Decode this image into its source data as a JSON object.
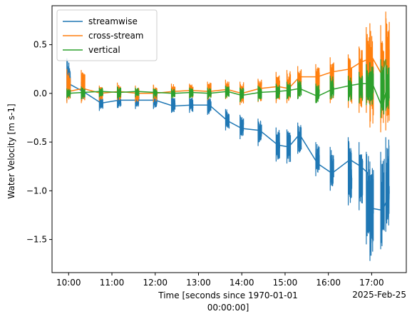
{
  "chart_data": {
    "type": "line",
    "title": "",
    "ylabel": "Water Velocity [m s-1]",
    "xlabel": "Time [seconds since 1970-01-01 00:00:00]",
    "xlabel_lines": [
      "Time [seconds since 1970-01-01",
      "00:00:00]"
    ],
    "x_offset_label": "2025-Feb-25",
    "xlim": [
      "09:37",
      "17:48"
    ],
    "ylim": [
      -1.84,
      0.9
    ],
    "x_ticks": [
      "10:00",
      "11:00",
      "12:00",
      "13:00",
      "14:00",
      "15:00",
      "16:00",
      "17:00"
    ],
    "y_ticks": [
      0.5,
      0.0,
      -0.5,
      -1.0,
      -1.5
    ],
    "y_tick_labels": [
      "0.5",
      "0.0",
      "−0.5",
      "−1.0",
      "−1.5"
    ],
    "grid": false,
    "legend_position": "upper-left",
    "colors": {
      "streamwise": "#1f77b4",
      "cross-stream": "#ff7f0e",
      "vertical": "#2ca02c"
    },
    "bursts": [
      {
        "time": "10:00",
        "streamwise": {
          "mean": 0.1,
          "min": -0.08,
          "max": 0.36
        },
        "cross-stream": {
          "mean": 0.02,
          "min": -0.1,
          "max": 0.25
        },
        "vertical": {
          "mean": 0.0,
          "min": -0.05,
          "max": 0.05
        }
      },
      {
        "time": "10:20",
        "streamwise": {
          "mean": 0.02,
          "min": -0.08,
          "max": 0.12
        },
        "cross-stream": {
          "mean": 0.05,
          "min": -0.1,
          "max": 0.24
        },
        "vertical": {
          "mean": 0.01,
          "min": -0.06,
          "max": 0.07
        }
      },
      {
        "time": "10:45",
        "streamwise": {
          "mean": -0.1,
          "min": -0.18,
          "max": 0.0
        },
        "cross-stream": {
          "mean": 0.0,
          "min": -0.08,
          "max": 0.08
        },
        "vertical": {
          "mean": 0.02,
          "min": -0.04,
          "max": 0.06
        }
      },
      {
        "time": "11:10",
        "streamwise": {
          "mean": -0.07,
          "min": -0.15,
          "max": 0.0
        },
        "cross-stream": {
          "mean": 0.02,
          "min": -0.07,
          "max": 0.11
        },
        "vertical": {
          "mean": 0.01,
          "min": -0.05,
          "max": 0.07
        }
      },
      {
        "time": "11:35",
        "streamwise": {
          "mean": -0.07,
          "min": -0.16,
          "max": 0.01
        },
        "cross-stream": {
          "mean": 0.0,
          "min": -0.09,
          "max": 0.08
        },
        "vertical": {
          "mean": 0.02,
          "min": -0.04,
          "max": 0.06
        }
      },
      {
        "time": "12:00",
        "streamwise": {
          "mean": -0.07,
          "min": -0.16,
          "max": 0.03
        },
        "cross-stream": {
          "mean": 0.0,
          "min": -0.09,
          "max": 0.09
        },
        "vertical": {
          "mean": 0.01,
          "min": -0.05,
          "max": 0.05
        }
      },
      {
        "time": "12:25",
        "streamwise": {
          "mean": -0.13,
          "min": -0.2,
          "max": -0.03
        },
        "cross-stream": {
          "mean": 0.02,
          "min": -0.05,
          "max": 0.1
        },
        "vertical": {
          "mean": 0.0,
          "min": -0.05,
          "max": 0.05
        }
      },
      {
        "time": "12:50",
        "streamwise": {
          "mean": -0.12,
          "min": -0.2,
          "max": -0.03
        },
        "cross-stream": {
          "mean": 0.03,
          "min": -0.05,
          "max": 0.1
        },
        "vertical": {
          "mean": 0.01,
          "min": -0.05,
          "max": 0.06
        }
      },
      {
        "time": "13:15",
        "streamwise": {
          "mean": -0.12,
          "min": -0.22,
          "max": -0.02
        },
        "cross-stream": {
          "mean": 0.02,
          "min": -0.07,
          "max": 0.12
        },
        "vertical": {
          "mean": 0.0,
          "min": -0.06,
          "max": 0.06
        }
      },
      {
        "time": "13:40",
        "streamwise": {
          "mean": -0.28,
          "min": -0.38,
          "max": -0.16
        },
        "cross-stream": {
          "mean": 0.04,
          "min": -0.06,
          "max": 0.14
        },
        "vertical": {
          "mean": 0.02,
          "min": -0.05,
          "max": 0.08
        }
      },
      {
        "time": "14:00",
        "streamwise": {
          "mean": -0.36,
          "min": -0.47,
          "max": -0.22
        },
        "cross-stream": {
          "mean": 0.0,
          "min": -0.12,
          "max": 0.12
        },
        "vertical": {
          "mean": -0.02,
          "min": -0.09,
          "max": 0.06
        }
      },
      {
        "time": "14:25",
        "streamwise": {
          "mean": -0.38,
          "min": -0.54,
          "max": -0.26
        },
        "cross-stream": {
          "mean": 0.05,
          "min": -0.09,
          "max": 0.15
        },
        "vertical": {
          "mean": 0.01,
          "min": -0.08,
          "max": 0.08
        }
      },
      {
        "time": "14:50",
        "streamwise": {
          "mean": -0.53,
          "min": -0.7,
          "max": -0.35
        },
        "cross-stream": {
          "mean": 0.07,
          "min": -0.1,
          "max": 0.22
        },
        "vertical": {
          "mean": 0.02,
          "min": -0.06,
          "max": 0.1
        }
      },
      {
        "time": "15:05",
        "streamwise": {
          "mean": -0.55,
          "min": -0.72,
          "max": -0.37
        },
        "cross-stream": {
          "mean": 0.05,
          "min": -0.1,
          "max": 0.24
        },
        "vertical": {
          "mean": 0.03,
          "min": -0.06,
          "max": 0.12
        }
      },
      {
        "time": "15:20",
        "streamwise": {
          "mean": -0.42,
          "min": -0.62,
          "max": -0.3
        },
        "cross-stream": {
          "mean": 0.17,
          "min": -0.05,
          "max": 0.28
        },
        "vertical": {
          "mean": 0.05,
          "min": -0.06,
          "max": 0.14
        }
      },
      {
        "time": "15:45",
        "streamwise": {
          "mean": -0.72,
          "min": -0.85,
          "max": -0.5
        },
        "cross-stream": {
          "mean": 0.17,
          "min": -0.09,
          "max": 0.3
        },
        "vertical": {
          "mean": -0.03,
          "min": -0.1,
          "max": 0.1
        }
      },
      {
        "time": "16:05",
        "streamwise": {
          "mean": -0.82,
          "min": -1.0,
          "max": -0.55
        },
        "cross-stream": {
          "mean": 0.22,
          "min": -0.1,
          "max": 0.37
        },
        "vertical": {
          "mean": 0.04,
          "min": -0.06,
          "max": 0.18
        }
      },
      {
        "time": "16:30",
        "streamwise": {
          "mean": -0.68,
          "min": -1.15,
          "max": -0.45
        },
        "cross-stream": {
          "mean": 0.25,
          "min": -0.15,
          "max": 0.4
        },
        "vertical": {
          "mean": 0.08,
          "min": -0.08,
          "max": 0.18
        }
      },
      {
        "time": "16:45",
        "streamwise": {
          "mean": -0.75,
          "min": -1.2,
          "max": -0.5
        },
        "cross-stream": {
          "mean": 0.32,
          "min": -0.2,
          "max": 0.48
        },
        "vertical": {
          "mean": 0.1,
          "min": -0.1,
          "max": 0.22
        }
      },
      {
        "time": "16:55",
        "streamwise": {
          "mean": -0.82,
          "min": -1.55,
          "max": -0.6
        },
        "cross-stream": {
          "mean": 0.35,
          "min": -0.2,
          "max": 0.68
        },
        "vertical": {
          "mean": 0.1,
          "min": -0.12,
          "max": 0.3
        }
      },
      {
        "time": "17:00",
        "streamwise": {
          "mean": -1.18,
          "min": -1.72,
          "max": -0.7
        },
        "cross-stream": {
          "mean": 0.38,
          "min": -0.35,
          "max": 0.72
        },
        "vertical": {
          "mean": 0.12,
          "min": -0.12,
          "max": 0.32
        }
      },
      {
        "time": "17:15",
        "streamwise": {
          "mean": -1.2,
          "min": -1.6,
          "max": -0.6
        },
        "cross-stream": {
          "mean": 0.18,
          "min": -0.4,
          "max": 0.7
        },
        "vertical": {
          "mean": -0.15,
          "min": -0.25,
          "max": 0.35
        }
      },
      {
        "time": "17:22",
        "streamwise": {
          "mean": -1.08,
          "min": -1.42,
          "max": -0.45
        },
        "cross-stream": {
          "mean": 0.45,
          "min": -0.38,
          "max": 0.84
        },
        "vertical": {
          "mean": 0.1,
          "min": -0.18,
          "max": 0.35
        }
      }
    ],
    "series": [
      {
        "name": "streamwise"
      },
      {
        "name": "cross-stream"
      },
      {
        "name": "vertical"
      }
    ]
  }
}
